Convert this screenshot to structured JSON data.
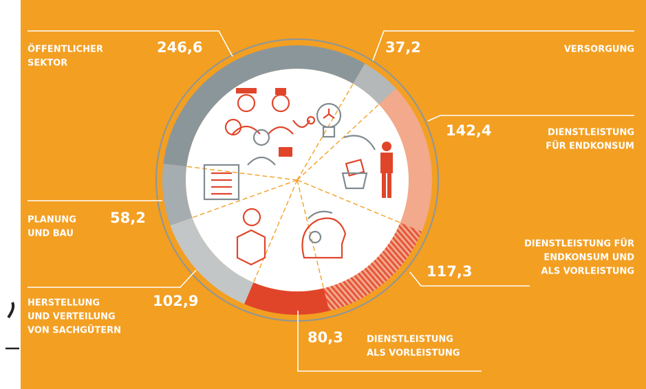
{
  "chart_data": {
    "type": "donut",
    "categories": [
      [
        "ÖFFENTLICHER",
        "SEKTOR"
      ],
      [
        "VERSORGUNG"
      ],
      [
        "DIENSTLEISTUNG",
        "FÜR ENDKONSUM"
      ],
      [
        "DIENSTLEISTUNG FÜR",
        "ENDKONSUM UND",
        "ALS VORLEISTUNG"
      ],
      [
        "DIENSTLEISTUNG",
        "ALS VORLEISTUNG"
      ],
      [
        "HERSTELLUNG",
        "UND VERTEILUNG",
        "VON SACHGÜTERN"
      ],
      [
        "PLANUNG",
        "UND BAU"
      ]
    ],
    "values": [
      246.6,
      37.2,
      142.4,
      117.3,
      80.3,
      102.9,
      58.2
    ],
    "value_labels": [
      "246,6",
      "37,2",
      "142,4",
      "117,3",
      "80,3",
      "102,9",
      "58,2"
    ],
    "colors": [
      "#8b969b",
      "#b4b8b8",
      "#f2a98c",
      "#e5553a",
      "#e0452a",
      "#c3c6c6",
      "#a6adb0"
    ],
    "hatched": [
      false,
      false,
      false,
      true,
      false,
      false,
      false
    ]
  }
}
